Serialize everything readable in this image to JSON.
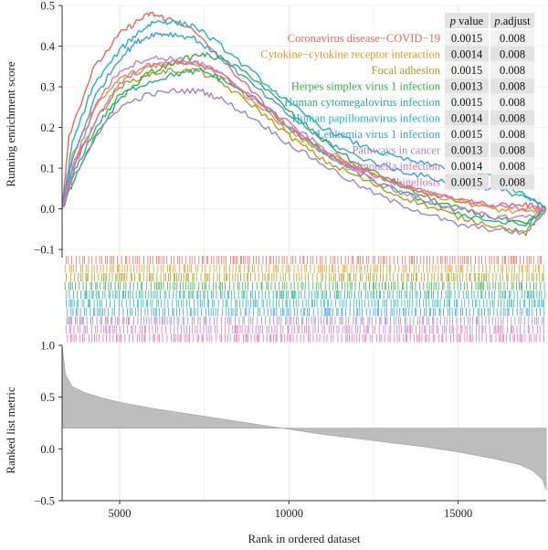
{
  "chart_data": {
    "type": "line",
    "panels": {
      "enrichment": {
        "ylabel": "Running enrichment score",
        "ylim": [
          -0.12,
          0.5
        ],
        "yticks": [
          -0.1,
          0.0,
          0.1,
          0.2,
          0.3,
          0.4,
          0.5
        ],
        "ytick_labels": [
          "−0.1",
          "0.0",
          "0.1",
          "0.2",
          "0.3",
          "0.4",
          "0.5"
        ]
      },
      "metric": {
        "ylabel": "Ranked list metric",
        "ylim": [
          -0.5,
          1.0
        ],
        "yticks": [
          -0.5,
          0.0,
          0.5,
          1.0
        ],
        "ytick_labels": [
          "−0.5",
          "0.0",
          "0.5",
          "1.0"
        ],
        "baseline": 0.2
      }
    },
    "xlabel": "Rank in ordered dataset",
    "xlim": [
      3300,
      17600
    ],
    "xticks": [
      5000,
      10000,
      15000
    ],
    "xtick_labels": [
      "5000",
      "10000",
      "15000"
    ],
    "grid": true,
    "table_headers": {
      "p_italic": "p",
      "p_rest": " value",
      "padj_italic": "p",
      "padj_rest": ".adjust"
    },
    "series": [
      {
        "name": "Coronavirus disease−COVID−19",
        "color": "#E8685E",
        "pvalue": "0.0015",
        "padjust": "0.008",
        "x": [
          3300,
          3500,
          4200,
          5000,
          5500,
          5900,
          6300,
          7000,
          8000,
          9000,
          10000,
          11000,
          12000,
          13000,
          14000,
          15000,
          16000,
          17000,
          17600
        ],
        "y": [
          0.0,
          0.18,
          0.34,
          0.43,
          0.46,
          0.48,
          0.47,
          0.45,
          0.37,
          0.28,
          0.2,
          0.14,
          0.1,
          0.07,
          0.04,
          0.02,
          0.01,
          0.01,
          0.0
        ]
      },
      {
        "name": "Cytokine−cytokine receptor interaction",
        "color": "#E0962A",
        "pvalue": "0.0014",
        "padjust": "0.008",
        "x": [
          3300,
          3600,
          4300,
          5000,
          5800,
          6500,
          7200,
          8000,
          9000,
          10000,
          11000,
          12000,
          13000,
          14000,
          15000,
          16000,
          17000,
          17600
        ],
        "y": [
          0.0,
          0.13,
          0.25,
          0.32,
          0.35,
          0.36,
          0.36,
          0.33,
          0.26,
          0.19,
          0.14,
          0.1,
          0.07,
          0.04,
          0.02,
          0.0,
          -0.01,
          0.0
        ]
      },
      {
        "name": "Focal adhesion",
        "color": "#A5A11E",
        "pvalue": "0.0015",
        "padjust": "0.008",
        "x": [
          3300,
          3600,
          4300,
          5000,
          5800,
          6500,
          7300,
          8000,
          9000,
          10000,
          11000,
          12000,
          13000,
          14000,
          15000,
          16000,
          17000,
          17600
        ],
        "y": [
          0.0,
          0.1,
          0.22,
          0.3,
          0.33,
          0.34,
          0.34,
          0.31,
          0.25,
          0.18,
          0.12,
          0.08,
          0.04,
          0.01,
          -0.02,
          -0.04,
          -0.06,
          0.0
        ]
      },
      {
        "name": "Herpes simplex virus 1 infection",
        "color": "#3DAA4A",
        "pvalue": "0.0013",
        "padjust": "0.008",
        "x": [
          3300,
          3600,
          4300,
          5000,
          5800,
          6600,
          7400,
          8000,
          9000,
          10000,
          11000,
          12000,
          13000,
          14000,
          15000,
          16000,
          17000,
          17600
        ],
        "y": [
          0.0,
          0.06,
          0.18,
          0.27,
          0.33,
          0.36,
          0.38,
          0.37,
          0.32,
          0.24,
          0.17,
          0.11,
          0.07,
          0.03,
          0.0,
          -0.02,
          -0.04,
          0.0
        ]
      },
      {
        "name": "Human cytomegalovirus infection",
        "color": "#27B089",
        "pvalue": "0.0015",
        "padjust": "0.008",
        "x": [
          3300,
          3600,
          4300,
          5000,
          5800,
          6600,
          7400,
          8000,
          9000,
          10000,
          11000,
          12000,
          13000,
          14000,
          15000,
          16000,
          17000,
          17600
        ],
        "y": [
          0.0,
          0.08,
          0.2,
          0.28,
          0.31,
          0.33,
          0.34,
          0.32,
          0.27,
          0.2,
          0.14,
          0.09,
          0.05,
          0.02,
          -0.01,
          -0.03,
          -0.04,
          0.0
        ]
      },
      {
        "name": "Human papillomavirus infection",
        "color": "#23B3BF",
        "pvalue": "0.0014",
        "padjust": "0.008",
        "x": [
          3300,
          3600,
          4200,
          5000,
          5500,
          6000,
          6500,
          7200,
          8000,
          9000,
          10000,
          11000,
          12000,
          13000,
          14000,
          15000,
          16000,
          17000,
          17600
        ],
        "y": [
          0.0,
          0.16,
          0.3,
          0.39,
          0.43,
          0.46,
          0.46,
          0.45,
          0.4,
          0.33,
          0.26,
          0.2,
          0.16,
          0.13,
          0.11,
          0.1,
          0.08,
          0.03,
          0.0
        ]
      },
      {
        "name": "Leukemia virus 1 infection",
        "color": "#3AA0DA",
        "pvalue": "0.0015",
        "padjust": "0.008",
        "x": [
          3300,
          3600,
          4300,
          5000,
          5500,
          6000,
          6500,
          7200,
          8000,
          9000,
          10000,
          11000,
          12000,
          13000,
          14000,
          15000,
          16000,
          17000,
          17600
        ],
        "y": [
          0.0,
          0.12,
          0.28,
          0.37,
          0.41,
          0.43,
          0.43,
          0.42,
          0.37,
          0.3,
          0.23,
          0.17,
          0.13,
          0.1,
          0.08,
          0.06,
          0.05,
          0.03,
          0.0
        ]
      },
      {
        "name": "Pathways in cancer",
        "color": "#9D86C4",
        "pvalue": "0.0013",
        "padjust": "0.008",
        "x": [
          3300,
          3600,
          4300,
          5000,
          5800,
          6600,
          7400,
          8000,
          9000,
          10000,
          11000,
          12000,
          13000,
          14000,
          15000,
          16000,
          17000,
          17600
        ],
        "y": [
          0.0,
          0.07,
          0.18,
          0.25,
          0.28,
          0.29,
          0.29,
          0.27,
          0.22,
          0.16,
          0.11,
          0.06,
          0.02,
          -0.01,
          -0.04,
          -0.05,
          -0.06,
          0.0
        ]
      },
      {
        "name": "Salmonella infection",
        "color": "#CF7BC0",
        "pvalue": "0.0014",
        "padjust": "0.008",
        "x": [
          3300,
          3600,
          4300,
          5000,
          5800,
          6500,
          7300,
          8000,
          9000,
          10000,
          11000,
          12000,
          13000,
          14000,
          15000,
          16000,
          17000,
          17600
        ],
        "y": [
          0.0,
          0.1,
          0.26,
          0.34,
          0.37,
          0.37,
          0.36,
          0.33,
          0.27,
          0.2,
          0.14,
          0.09,
          0.05,
          0.02,
          0.0,
          -0.02,
          -0.02,
          0.0
        ]
      },
      {
        "name": "Shigellosis",
        "color": "#E06FA8",
        "pvalue": "0.0015",
        "padjust": "0.008",
        "x": [
          3300,
          3600,
          4300,
          5000,
          5800,
          6500,
          7300,
          8000,
          9000,
          10000,
          11000,
          12000,
          13000,
          14000,
          15000,
          16000,
          17000,
          17600
        ],
        "y": [
          0.0,
          0.09,
          0.22,
          0.31,
          0.35,
          0.36,
          0.36,
          0.33,
          0.27,
          0.21,
          0.15,
          0.1,
          0.07,
          0.04,
          0.02,
          0.01,
          0.0,
          0.0
        ]
      }
    ],
    "rank_metric": {
      "x": [
        3300,
        3400,
        3600,
        4000,
        4500,
        5000,
        6000,
        7000,
        8000,
        9000,
        10000,
        11000,
        12000,
        13000,
        14000,
        15000,
        16000,
        16800,
        17200,
        17500,
        17600
      ],
      "y": [
        1.0,
        0.72,
        0.6,
        0.54,
        0.49,
        0.45,
        0.39,
        0.34,
        0.29,
        0.24,
        0.19,
        0.14,
        0.1,
        0.06,
        0.02,
        -0.03,
        -0.09,
        -0.15,
        -0.21,
        -0.3,
        -0.4
      ]
    }
  }
}
